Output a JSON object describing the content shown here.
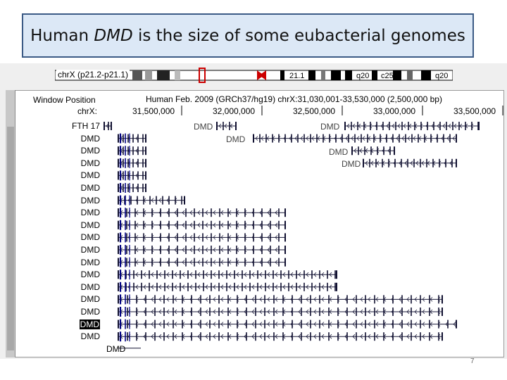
{
  "slide": {
    "title_prefix": "Human ",
    "title_gene": "DMD",
    "title_suffix": " is the size of some eubacterial genomes",
    "page_number": "7"
  },
  "browser": {
    "ideogram_label": "chrX (p21.2-p21.1)",
    "band_labels": [
      "21.1",
      "q20",
      "c25",
      "q20"
    ],
    "window_position_label": "Window Position",
    "assembly_text": "Human Feb. 2009 (GRCh37/hg19)   chrX:31,030,001-33,530,000 (2,500,000 bp)",
    "chr_label": "chrX:",
    "ruler_ticks": [
      "31,500,000",
      "32,000,000",
      "32,500,000",
      "33,000,000",
      "33,500,000"
    ],
    "track_rows": [
      "FTH 17",
      "DMD",
      "DMD",
      "DMD",
      "DMD",
      "DMD",
      "DMD",
      "DMD",
      "DMD",
      "DMD",
      "DMD",
      "DMD",
      "DMD",
      "DMD",
      "DMD",
      "DMD",
      "DMD",
      "DMD"
    ],
    "selected_row": 16,
    "inline_labels": [
      "DMD",
      "DMD",
      "DMD",
      "DMD",
      "DMD",
      "DMD"
    ],
    "colors": {
      "title_bg": "#dce8f6",
      "title_border": "#3b5a85",
      "gene": "#111133",
      "selected_bg": "#000000",
      "ideo_highlight": "#cc0000"
    }
  }
}
